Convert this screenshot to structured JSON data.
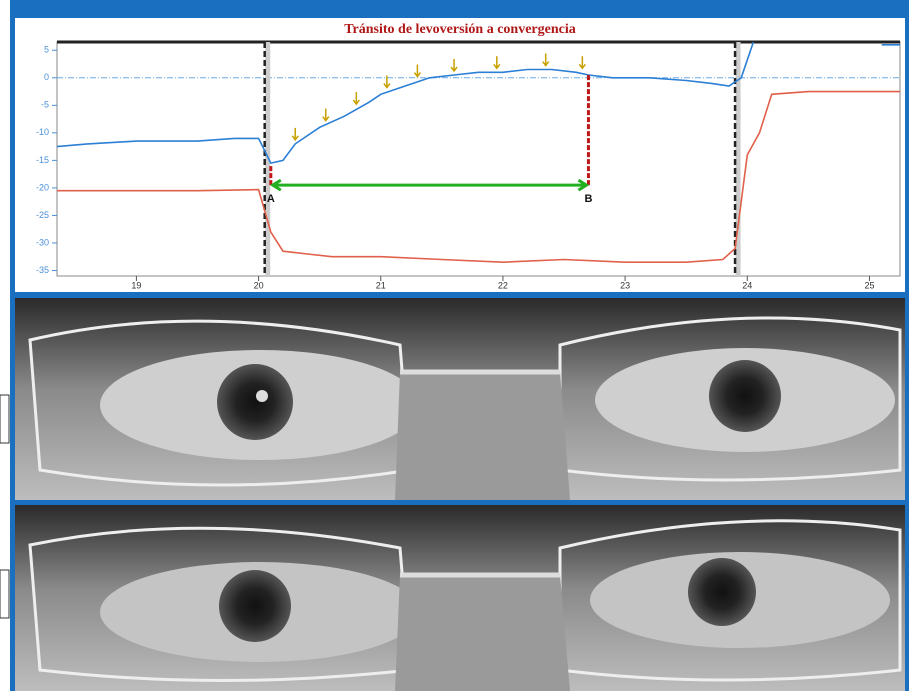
{
  "chart_data": {
    "type": "line",
    "title": "Tránsito de levoversión a convergencia",
    "xlim": [
      18.35,
      25.25
    ],
    "ylim": [
      -36,
      6.5
    ],
    "xticks": [
      19,
      20,
      21,
      22,
      23,
      24,
      25
    ],
    "yticks": [
      5,
      0,
      -5,
      -10,
      -15,
      -20,
      -25,
      -30,
      -35
    ],
    "series": [
      {
        "color": "#2b7fd4",
        "x": [
          18.35,
          18.6,
          19.0,
          19.5,
          19.8,
          20.0,
          20.1,
          20.2,
          20.3,
          20.5,
          20.7,
          20.9,
          21.0,
          21.2,
          21.4,
          21.6,
          21.8,
          22.0,
          22.2,
          22.4,
          22.6,
          22.7,
          22.9,
          23.2,
          23.5,
          23.7,
          23.85,
          23.95,
          24.05,
          24.1,
          25.1,
          25.25
        ],
        "values": [
          -12.5,
          -12,
          -11.5,
          -11.5,
          -11,
          -11,
          -15.5,
          -15,
          -12,
          -9,
          -7,
          -4.5,
          -3,
          -1.5,
          0,
          0.5,
          1,
          1,
          1.5,
          1.5,
          1,
          0.5,
          0,
          0,
          -0.5,
          -1,
          -1.5,
          0,
          6.5,
          null,
          6,
          6
        ]
      },
      {
        "color": "#e0604a",
        "x": [
          18.35,
          19.0,
          19.5,
          20.0,
          20.1,
          20.2,
          20.4,
          20.6,
          21.0,
          21.5,
          22.0,
          22.5,
          23.0,
          23.5,
          23.8,
          23.9,
          24.0,
          24.1,
          24.2,
          24.5,
          25.0,
          25.25
        ],
        "values": [
          -20.5,
          -20.5,
          -20.5,
          -20.3,
          -28,
          -31.5,
          -32,
          -32.5,
          -32.5,
          -33,
          -33.5,
          -33,
          -33.5,
          -33.5,
          -33,
          -31,
          -14,
          -10,
          -3,
          -2.5,
          -2.5,
          -2.5
        ]
      }
    ],
    "vlines": [
      20.05,
      23.9
    ],
    "annotations": [
      {
        "text": "A",
        "x": 20.1,
        "y": -19.5,
        "top": -16
      },
      {
        "text": "B",
        "x": 22.7,
        "y": -19.5,
        "top": 0.5
      }
    ],
    "markers": {
      "color": "#c8a000",
      "x": [
        20.3,
        20.55,
        20.8,
        21.05,
        21.3,
        21.6,
        21.95,
        22.35,
        22.65
      ],
      "y": [
        -12,
        -8.5,
        -5.5,
        -2.5,
        -0.5,
        0.5,
        1,
        1.5,
        1
      ]
    }
  }
}
